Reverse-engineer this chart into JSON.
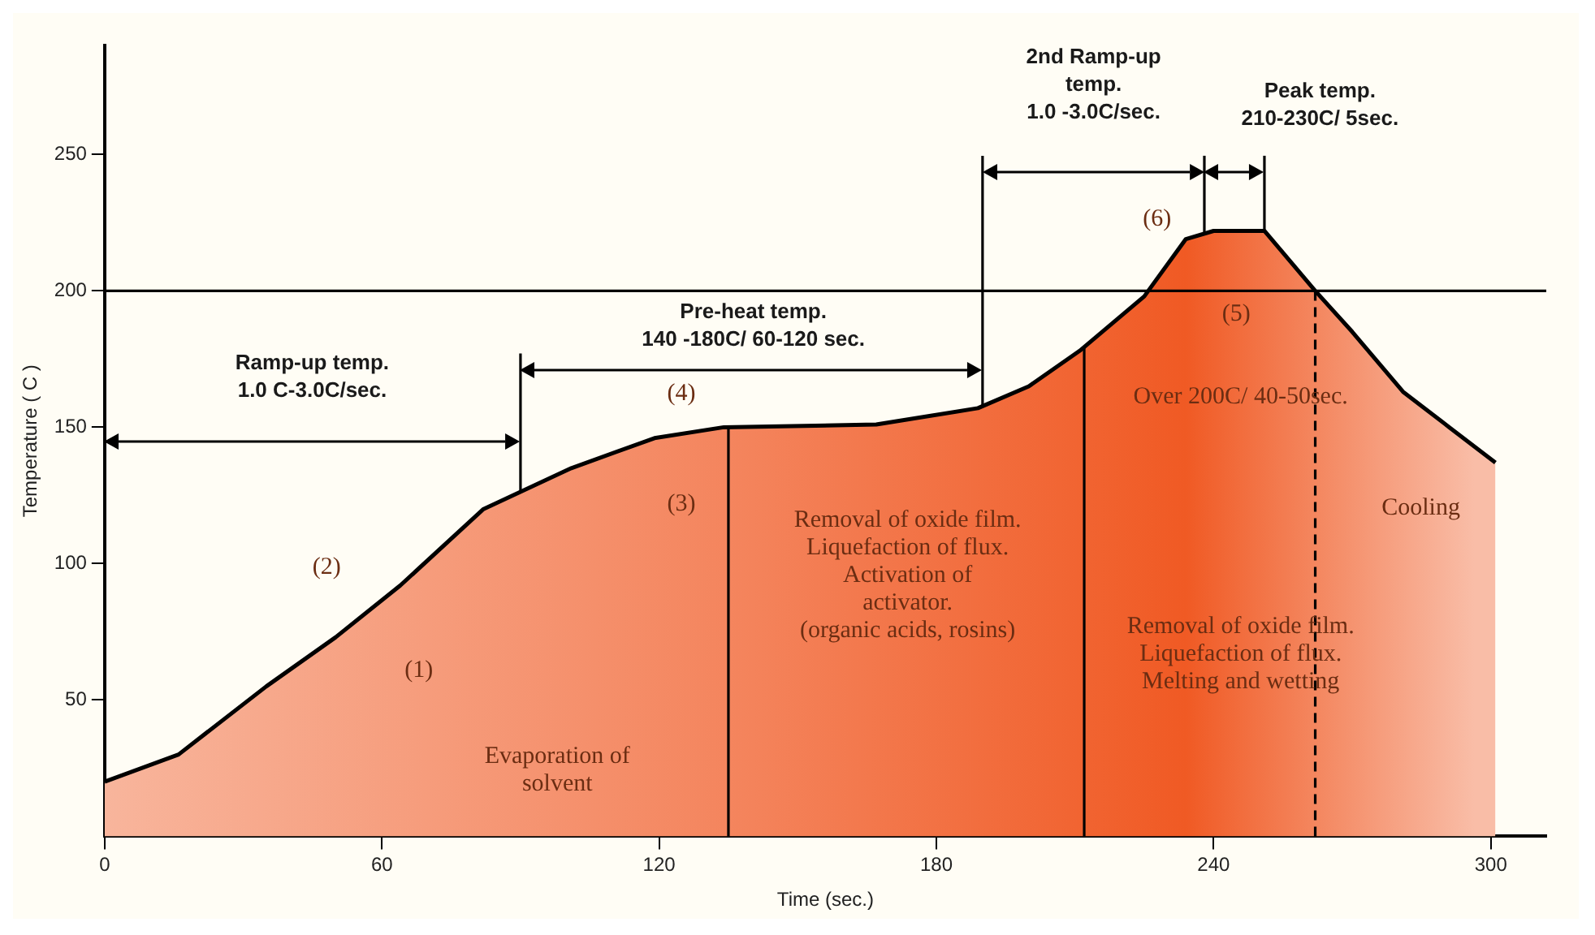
{
  "chart_data": {
    "type": "area",
    "xlabel": "Time (sec.)",
    "ylabel": "Temperature ( C )",
    "xlim": [
      0,
      312
    ],
    "ylim": [
      0,
      290
    ],
    "xticks": [
      0,
      60,
      120,
      180,
      240,
      300
    ],
    "yticks": [
      50,
      100,
      150,
      200,
      250
    ],
    "grid": false,
    "legend": false,
    "series": [
      {
        "color": "#f05a24",
        "x": [
          0,
          16,
          35,
          50,
          64,
          82,
          101,
          119,
          134,
          167,
          189,
          200,
          211,
          225,
          234,
          240,
          251,
          262,
          270,
          281,
          291,
          301
        ],
        "values": [
          20,
          30,
          55,
          73,
          92,
          120,
          135,
          146,
          150,
          151,
          157,
          165,
          178,
          198,
          219,
          222,
          222,
          200,
          185,
          163,
          150,
          137
        ]
      }
    ],
    "ref_lines": [
      {
        "axis": "y",
        "value": 200,
        "label": null
      },
      {
        "axis": "x",
        "value": 90,
        "label": null
      },
      {
        "axis": "x",
        "value": 190,
        "label": null
      },
      {
        "axis": "x",
        "value": 238,
        "label": null
      },
      {
        "axis": "x",
        "value": 251,
        "label": null
      },
      {
        "axis": "x",
        "value": 135,
        "label": null
      },
      {
        "axis": "x",
        "value": 212,
        "label": null
      },
      {
        "axis": "x",
        "value": 262,
        "label": null,
        "line_style": "dashed"
      }
    ],
    "annotations": [
      "(1)",
      "(2)",
      "(3)",
      "(4)",
      "(5)",
      "(6)",
      "Evaporation of\nsolvent",
      "Removal of oxide film.\nLiquefaction of flux.\nActivation of\nactivator.\n(organic acids, rosins)",
      "Over 200C/ 40-50sec.",
      "Removal of oxide film.\nLiquefaction of flux.\nMelting and wetting",
      "Cooling",
      "Ramp-up temp.\n1.0 C-3.0C/sec.",
      "Pre-heat temp.\n140 -180C/ 60-120 sec.",
      "2nd Ramp-up\ntemp.\n1.0 -3.0C/sec.",
      "Peak temp.\n210-230C/ 5sec."
    ]
  }
}
